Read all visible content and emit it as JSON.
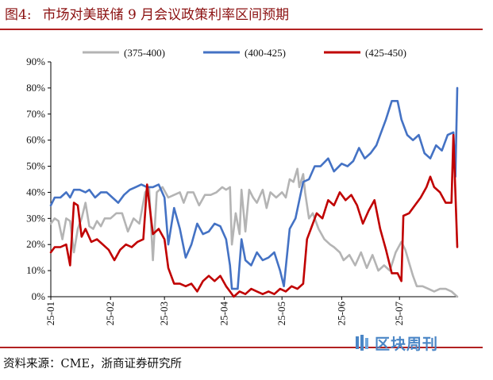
{
  "figure": {
    "number": "图4:",
    "title": "市场对美联储 9 月会议政策利率区间预期",
    "source": "资料来源：CME，浙商证券研究所",
    "watermark": "区块周刊"
  },
  "colors": {
    "accent": "#b22222",
    "gray": "#b4b4b4",
    "blue": "#4472c4",
    "red": "#c00000"
  },
  "chart_data": {
    "type": "line",
    "x_type": "date",
    "xlim": [
      "2025-01-01",
      "2025-07-31"
    ],
    "x_ticks": [
      "25-01",
      "25-02",
      "25-03",
      "25-04",
      "25-05",
      "25-06",
      "25-07"
    ],
    "ylim": [
      0,
      90
    ],
    "y_ticks": [
      "0%",
      "10%",
      "20%",
      "30%",
      "40%",
      "50%",
      "60%",
      "70%",
      "80%",
      "90%"
    ],
    "y_unit": "%",
    "legend_position": "top",
    "grid": false,
    "series": [
      {
        "name": "(375-400)",
        "color": "#b4b4b4",
        "points": [
          [
            "2025-01-01",
            28
          ],
          [
            "2025-01-03",
            30
          ],
          [
            "2025-01-05",
            29
          ],
          [
            "2025-01-07",
            22
          ],
          [
            "2025-01-09",
            30
          ],
          [
            "2025-01-11",
            29
          ],
          [
            "2025-01-13",
            17
          ],
          [
            "2025-01-15",
            26
          ],
          [
            "2025-01-17",
            30
          ],
          [
            "2025-01-19",
            36
          ],
          [
            "2025-01-21",
            27
          ],
          [
            "2025-01-23",
            26
          ],
          [
            "2025-01-25",
            29
          ],
          [
            "2025-01-27",
            27
          ],
          [
            "2025-01-29",
            30
          ],
          [
            "2025-02-01",
            30
          ],
          [
            "2025-02-04",
            32
          ],
          [
            "2025-02-07",
            32
          ],
          [
            "2025-02-10",
            25
          ],
          [
            "2025-02-13",
            30
          ],
          [
            "2025-02-16",
            28
          ],
          [
            "2025-02-19",
            40
          ],
          [
            "2025-02-21",
            42
          ],
          [
            "2025-02-23",
            14
          ],
          [
            "2025-02-25",
            40
          ],
          [
            "2025-02-28",
            42
          ],
          [
            "2025-03-03",
            38
          ],
          [
            "2025-03-06",
            39
          ],
          [
            "2025-03-09",
            40
          ],
          [
            "2025-03-11",
            36
          ],
          [
            "2025-03-13",
            40
          ],
          [
            "2025-03-16",
            40
          ],
          [
            "2025-03-19",
            35
          ],
          [
            "2025-03-22",
            39
          ],
          [
            "2025-03-25",
            39
          ],
          [
            "2025-03-28",
            40
          ],
          [
            "2025-03-31",
            42
          ],
          [
            "2025-04-02",
            41
          ],
          [
            "2025-04-04",
            42
          ],
          [
            "2025-04-05",
            20
          ],
          [
            "2025-04-07",
            32
          ],
          [
            "2025-04-09",
            24
          ],
          [
            "2025-04-10",
            41
          ],
          [
            "2025-04-12",
            25
          ],
          [
            "2025-04-14",
            41
          ],
          [
            "2025-04-16",
            38
          ],
          [
            "2025-04-18",
            36
          ],
          [
            "2025-04-21",
            41
          ],
          [
            "2025-04-23",
            34
          ],
          [
            "2025-04-25",
            40
          ],
          [
            "2025-04-28",
            38
          ],
          [
            "2025-05-01",
            40
          ],
          [
            "2025-05-03",
            38
          ],
          [
            "2025-05-05",
            45
          ],
          [
            "2025-05-07",
            44
          ],
          [
            "2025-05-09",
            49
          ],
          [
            "2025-05-10",
            42
          ],
          [
            "2025-05-12",
            47
          ],
          [
            "2025-05-13",
            40
          ],
          [
            "2025-05-15",
            30
          ],
          [
            "2025-05-17",
            32
          ],
          [
            "2025-05-20",
            26
          ],
          [
            "2025-05-23",
            22
          ],
          [
            "2025-05-26",
            20
          ],
          [
            "2025-05-28",
            19
          ],
          [
            "2025-05-31",
            17
          ],
          [
            "2025-06-02",
            14
          ],
          [
            "2025-06-05",
            16
          ],
          [
            "2025-06-08",
            12
          ],
          [
            "2025-06-11",
            17
          ],
          [
            "2025-06-14",
            11
          ],
          [
            "2025-06-17",
            16
          ],
          [
            "2025-06-20",
            10
          ],
          [
            "2025-06-23",
            12
          ],
          [
            "2025-06-26",
            10
          ],
          [
            "2025-06-29",
            17
          ],
          [
            "2025-07-02",
            21
          ],
          [
            "2025-07-04",
            18
          ],
          [
            "2025-07-06",
            13
          ],
          [
            "2025-07-08",
            8
          ],
          [
            "2025-07-10",
            4
          ],
          [
            "2025-07-13",
            4
          ],
          [
            "2025-07-16",
            3
          ],
          [
            "2025-07-19",
            2
          ],
          [
            "2025-07-22",
            3
          ],
          [
            "2025-07-25",
            3
          ],
          [
            "2025-07-28",
            2
          ],
          [
            "2025-07-31",
            0
          ]
        ]
      },
      {
        "name": "(400-425)",
        "color": "#4472c4",
        "points": [
          [
            "2025-01-01",
            35
          ],
          [
            "2025-01-03",
            38
          ],
          [
            "2025-01-06",
            38
          ],
          [
            "2025-01-09",
            40
          ],
          [
            "2025-01-11",
            38
          ],
          [
            "2025-01-13",
            41
          ],
          [
            "2025-01-16",
            41
          ],
          [
            "2025-01-19",
            40
          ],
          [
            "2025-01-21",
            41
          ],
          [
            "2025-01-24",
            38
          ],
          [
            "2025-01-27",
            40
          ],
          [
            "2025-01-30",
            40
          ],
          [
            "2025-02-02",
            38
          ],
          [
            "2025-02-05",
            36
          ],
          [
            "2025-02-08",
            39
          ],
          [
            "2025-02-11",
            41
          ],
          [
            "2025-02-14",
            42
          ],
          [
            "2025-02-17",
            43
          ],
          [
            "2025-02-20",
            42
          ],
          [
            "2025-02-23",
            42
          ],
          [
            "2025-02-26",
            43
          ],
          [
            "2025-03-01",
            38
          ],
          [
            "2025-03-03",
            20
          ],
          [
            "2025-03-06",
            34
          ],
          [
            "2025-03-09",
            26
          ],
          [
            "2025-03-12",
            15
          ],
          [
            "2025-03-15",
            20
          ],
          [
            "2025-03-18",
            28
          ],
          [
            "2025-03-21",
            24
          ],
          [
            "2025-03-24",
            25
          ],
          [
            "2025-03-27",
            28
          ],
          [
            "2025-03-30",
            27
          ],
          [
            "2025-04-02",
            22
          ],
          [
            "2025-04-04",
            12
          ],
          [
            "2025-04-05",
            3
          ],
          [
            "2025-04-08",
            3
          ],
          [
            "2025-04-10",
            22
          ],
          [
            "2025-04-12",
            14
          ],
          [
            "2025-04-15",
            12
          ],
          [
            "2025-04-18",
            17
          ],
          [
            "2025-04-21",
            14
          ],
          [
            "2025-04-24",
            15
          ],
          [
            "2025-04-27",
            17
          ],
          [
            "2025-04-30",
            10
          ],
          [
            "2025-05-02",
            4
          ],
          [
            "2025-05-05",
            26
          ],
          [
            "2025-05-08",
            30
          ],
          [
            "2025-05-12",
            44
          ],
          [
            "2025-05-15",
            45
          ],
          [
            "2025-05-18",
            50
          ],
          [
            "2025-05-21",
            50
          ],
          [
            "2025-05-25",
            53
          ],
          [
            "2025-05-28",
            48
          ],
          [
            "2025-06-01",
            51
          ],
          [
            "2025-06-04",
            50
          ],
          [
            "2025-06-07",
            52
          ],
          [
            "2025-06-10",
            57
          ],
          [
            "2025-06-13",
            53
          ],
          [
            "2025-06-16",
            55
          ],
          [
            "2025-06-19",
            58
          ],
          [
            "2025-06-21",
            62
          ],
          [
            "2025-06-24",
            68
          ],
          [
            "2025-06-27",
            75
          ],
          [
            "2025-06-30",
            75
          ],
          [
            "2025-07-02",
            68
          ],
          [
            "2025-07-05",
            62
          ],
          [
            "2025-07-08",
            60
          ],
          [
            "2025-07-11",
            62
          ],
          [
            "2025-07-14",
            55
          ],
          [
            "2025-07-17",
            53
          ],
          [
            "2025-07-20",
            58
          ],
          [
            "2025-07-23",
            56
          ],
          [
            "2025-07-26",
            62
          ],
          [
            "2025-07-29",
            63
          ],
          [
            "2025-07-30",
            46
          ],
          [
            "2025-07-31",
            80
          ]
        ]
      },
      {
        "name": "(425-450)",
        "color": "#c00000",
        "points": [
          [
            "2025-01-01",
            17
          ],
          [
            "2025-01-03",
            19
          ],
          [
            "2025-01-06",
            19
          ],
          [
            "2025-01-09",
            20
          ],
          [
            "2025-01-11",
            12
          ],
          [
            "2025-01-13",
            36
          ],
          [
            "2025-01-15",
            35
          ],
          [
            "2025-01-17",
            23
          ],
          [
            "2025-01-19",
            26
          ],
          [
            "2025-01-22",
            21
          ],
          [
            "2025-01-25",
            22
          ],
          [
            "2025-01-28",
            20
          ],
          [
            "2025-01-31",
            18
          ],
          [
            "2025-02-03",
            14
          ],
          [
            "2025-02-06",
            18
          ],
          [
            "2025-02-09",
            20
          ],
          [
            "2025-02-12",
            19
          ],
          [
            "2025-02-15",
            21
          ],
          [
            "2025-02-18",
            22
          ],
          [
            "2025-02-20",
            43
          ],
          [
            "2025-02-23",
            24
          ],
          [
            "2025-02-26",
            26
          ],
          [
            "2025-03-01",
            22
          ],
          [
            "2025-03-03",
            11
          ],
          [
            "2025-03-06",
            5
          ],
          [
            "2025-03-09",
            5
          ],
          [
            "2025-03-12",
            4
          ],
          [
            "2025-03-15",
            5
          ],
          [
            "2025-03-18",
            2
          ],
          [
            "2025-03-21",
            6
          ],
          [
            "2025-03-24",
            8
          ],
          [
            "2025-03-27",
            6
          ],
          [
            "2025-03-30",
            8
          ],
          [
            "2025-04-02",
            4
          ],
          [
            "2025-04-04",
            2
          ],
          [
            "2025-04-06",
            0
          ],
          [
            "2025-04-09",
            2
          ],
          [
            "2025-04-12",
            1
          ],
          [
            "2025-04-15",
            3
          ],
          [
            "2025-04-18",
            2
          ],
          [
            "2025-04-21",
            1
          ],
          [
            "2025-04-24",
            2
          ],
          [
            "2025-04-27",
            1
          ],
          [
            "2025-04-30",
            3
          ],
          [
            "2025-05-03",
            2
          ],
          [
            "2025-05-06",
            4
          ],
          [
            "2025-05-09",
            3
          ],
          [
            "2025-05-12",
            5
          ],
          [
            "2025-05-14",
            22
          ],
          [
            "2025-05-16",
            26
          ],
          [
            "2025-05-19",
            32
          ],
          [
            "2025-05-22",
            30
          ],
          [
            "2025-05-25",
            37
          ],
          [
            "2025-05-28",
            35
          ],
          [
            "2025-05-31",
            40
          ],
          [
            "2025-06-03",
            37
          ],
          [
            "2025-06-06",
            39
          ],
          [
            "2025-06-09",
            35
          ],
          [
            "2025-06-12",
            28
          ],
          [
            "2025-06-15",
            33
          ],
          [
            "2025-06-18",
            37
          ],
          [
            "2025-06-21",
            26
          ],
          [
            "2025-06-24",
            18
          ],
          [
            "2025-06-27",
            9
          ],
          [
            "2025-06-30",
            9
          ],
          [
            "2025-07-02",
            6
          ],
          [
            "2025-07-03",
            31
          ],
          [
            "2025-07-06",
            32
          ],
          [
            "2025-07-09",
            35
          ],
          [
            "2025-07-12",
            38
          ],
          [
            "2025-07-15",
            42
          ],
          [
            "2025-07-17",
            46
          ],
          [
            "2025-07-19",
            42
          ],
          [
            "2025-07-22",
            40
          ],
          [
            "2025-07-25",
            36
          ],
          [
            "2025-07-28",
            36
          ],
          [
            "2025-07-29",
            62
          ],
          [
            "2025-07-31",
            19
          ]
        ]
      }
    ]
  }
}
